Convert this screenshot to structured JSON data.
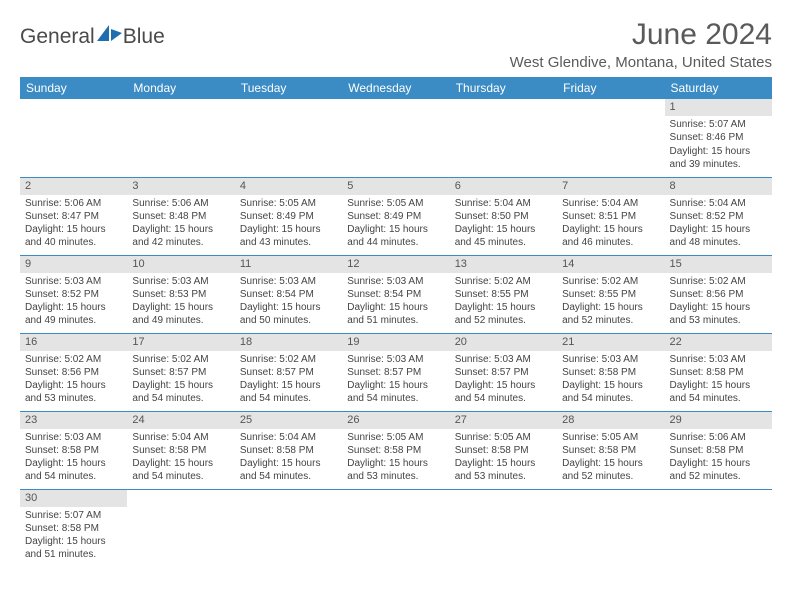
{
  "logo": {
    "word1": "General",
    "word2": "Blue"
  },
  "header": {
    "title": "June 2024",
    "location": "West Glendive, Montana, United States"
  },
  "colors": {
    "header_bg": "#3b8bc4",
    "header_text": "#ffffff",
    "daynum_bg": "#e4e4e4",
    "daynum_text": "#555555",
    "cell_border": "#3b8bc4",
    "body_text": "#444444",
    "title_text": "#5a5a5a"
  },
  "days_of_week": [
    "Sunday",
    "Monday",
    "Tuesday",
    "Wednesday",
    "Thursday",
    "Friday",
    "Saturday"
  ],
  "weeks": [
    [
      null,
      null,
      null,
      null,
      null,
      null,
      {
        "n": "1",
        "sunrise": "5:07 AM",
        "sunset": "8:46 PM",
        "dl": "15 hours and 39 minutes."
      }
    ],
    [
      {
        "n": "2",
        "sunrise": "5:06 AM",
        "sunset": "8:47 PM",
        "dl": "15 hours and 40 minutes."
      },
      {
        "n": "3",
        "sunrise": "5:06 AM",
        "sunset": "8:48 PM",
        "dl": "15 hours and 42 minutes."
      },
      {
        "n": "4",
        "sunrise": "5:05 AM",
        "sunset": "8:49 PM",
        "dl": "15 hours and 43 minutes."
      },
      {
        "n": "5",
        "sunrise": "5:05 AM",
        "sunset": "8:49 PM",
        "dl": "15 hours and 44 minutes."
      },
      {
        "n": "6",
        "sunrise": "5:04 AM",
        "sunset": "8:50 PM",
        "dl": "15 hours and 45 minutes."
      },
      {
        "n": "7",
        "sunrise": "5:04 AM",
        "sunset": "8:51 PM",
        "dl": "15 hours and 46 minutes."
      },
      {
        "n": "8",
        "sunrise": "5:04 AM",
        "sunset": "8:52 PM",
        "dl": "15 hours and 48 minutes."
      }
    ],
    [
      {
        "n": "9",
        "sunrise": "5:03 AM",
        "sunset": "8:52 PM",
        "dl": "15 hours and 49 minutes."
      },
      {
        "n": "10",
        "sunrise": "5:03 AM",
        "sunset": "8:53 PM",
        "dl": "15 hours and 49 minutes."
      },
      {
        "n": "11",
        "sunrise": "5:03 AM",
        "sunset": "8:54 PM",
        "dl": "15 hours and 50 minutes."
      },
      {
        "n": "12",
        "sunrise": "5:03 AM",
        "sunset": "8:54 PM",
        "dl": "15 hours and 51 minutes."
      },
      {
        "n": "13",
        "sunrise": "5:02 AM",
        "sunset": "8:55 PM",
        "dl": "15 hours and 52 minutes."
      },
      {
        "n": "14",
        "sunrise": "5:02 AM",
        "sunset": "8:55 PM",
        "dl": "15 hours and 52 minutes."
      },
      {
        "n": "15",
        "sunrise": "5:02 AM",
        "sunset": "8:56 PM",
        "dl": "15 hours and 53 minutes."
      }
    ],
    [
      {
        "n": "16",
        "sunrise": "5:02 AM",
        "sunset": "8:56 PM",
        "dl": "15 hours and 53 minutes."
      },
      {
        "n": "17",
        "sunrise": "5:02 AM",
        "sunset": "8:57 PM",
        "dl": "15 hours and 54 minutes."
      },
      {
        "n": "18",
        "sunrise": "5:02 AM",
        "sunset": "8:57 PM",
        "dl": "15 hours and 54 minutes."
      },
      {
        "n": "19",
        "sunrise": "5:03 AM",
        "sunset": "8:57 PM",
        "dl": "15 hours and 54 minutes."
      },
      {
        "n": "20",
        "sunrise": "5:03 AM",
        "sunset": "8:57 PM",
        "dl": "15 hours and 54 minutes."
      },
      {
        "n": "21",
        "sunrise": "5:03 AM",
        "sunset": "8:58 PM",
        "dl": "15 hours and 54 minutes."
      },
      {
        "n": "22",
        "sunrise": "5:03 AM",
        "sunset": "8:58 PM",
        "dl": "15 hours and 54 minutes."
      }
    ],
    [
      {
        "n": "23",
        "sunrise": "5:03 AM",
        "sunset": "8:58 PM",
        "dl": "15 hours and 54 minutes."
      },
      {
        "n": "24",
        "sunrise": "5:04 AM",
        "sunset": "8:58 PM",
        "dl": "15 hours and 54 minutes."
      },
      {
        "n": "25",
        "sunrise": "5:04 AM",
        "sunset": "8:58 PM",
        "dl": "15 hours and 54 minutes."
      },
      {
        "n": "26",
        "sunrise": "5:05 AM",
        "sunset": "8:58 PM",
        "dl": "15 hours and 53 minutes."
      },
      {
        "n": "27",
        "sunrise": "5:05 AM",
        "sunset": "8:58 PM",
        "dl": "15 hours and 53 minutes."
      },
      {
        "n": "28",
        "sunrise": "5:05 AM",
        "sunset": "8:58 PM",
        "dl": "15 hours and 52 minutes."
      },
      {
        "n": "29",
        "sunrise": "5:06 AM",
        "sunset": "8:58 PM",
        "dl": "15 hours and 52 minutes."
      }
    ],
    [
      {
        "n": "30",
        "sunrise": "5:07 AM",
        "sunset": "8:58 PM",
        "dl": "15 hours and 51 minutes."
      },
      null,
      null,
      null,
      null,
      null,
      null
    ]
  ],
  "labels": {
    "sunrise": "Sunrise:",
    "sunset": "Sunset:",
    "daylight": "Daylight:"
  }
}
